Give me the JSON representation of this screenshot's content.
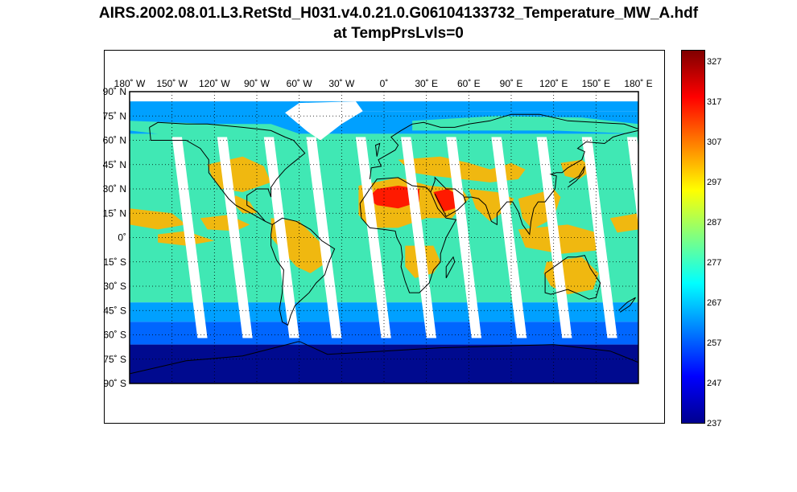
{
  "title": {
    "line1": "AIRS.2002.08.01.L3.RetStd_H031.v4.0.21.0.G06104133732_Temperature_MW_A.hdf",
    "line2": "at TempPrsLvls=0"
  },
  "map": {
    "projection": "equirectangular",
    "extent": {
      "lon": [
        -180,
        180
      ],
      "lat": [
        -90,
        90
      ]
    },
    "grid": "dotted",
    "lon_labels": [
      "180˚ W",
      "150˚ W",
      "120˚ W",
      "90˚ W",
      "60˚ W",
      "30˚ W",
      "0˚",
      "30˚ E",
      "60˚ E",
      "90˚ E",
      "120˚ E",
      "150˚ E",
      "180˚ E"
    ],
    "lat_labels": [
      "90˚ N",
      "75˚ N",
      "60˚ N",
      "45˚ N",
      "30˚ N",
      "15˚ N",
      "0˚",
      "15˚ S",
      "30˚ S",
      "45˚ S",
      "60˚ S",
      "75˚ S",
      "90˚ S"
    ],
    "colors": {
      "missing": "#ffffff",
      "polar": "#000a8f",
      "cold": "#0066ff",
      "cool": "#00a0ff",
      "mild": "#40e8b4",
      "warm": "#f0b810",
      "hot": "#ff1a00",
      "coast": "#000000"
    }
  },
  "colorbar": {
    "ticks": [
      "327",
      "317",
      "307",
      "297",
      "287",
      "277",
      "267",
      "257",
      "247",
      "237"
    ],
    "range": [
      237,
      330
    ],
    "colormap": "jet"
  }
}
